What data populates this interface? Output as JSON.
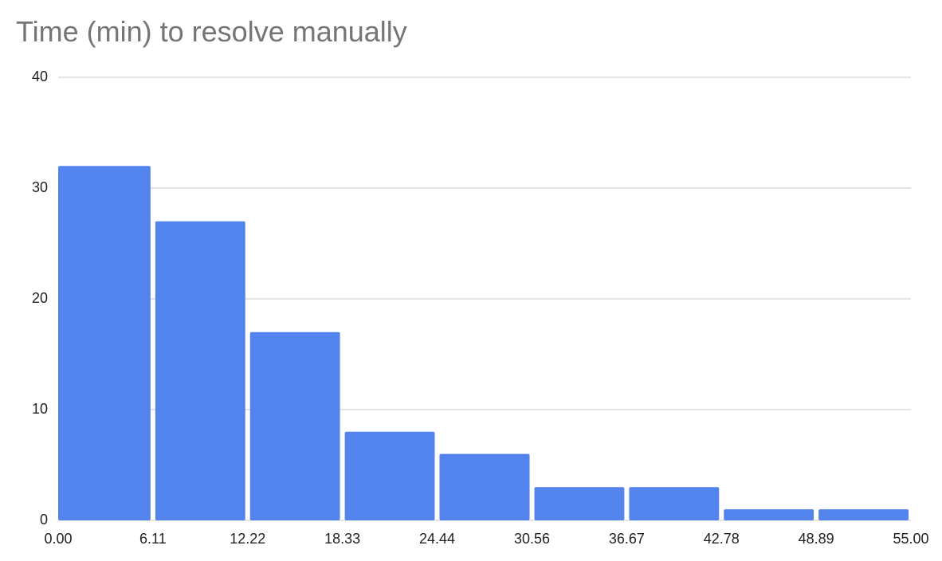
{
  "chart_data": {
    "type": "histogram",
    "title": "Time (min) to resolve manually",
    "bins": [
      0,
      6.11,
      12.22,
      18.33,
      24.44,
      30.56,
      36.67,
      42.78,
      48.89,
      55
    ],
    "counts": [
      32,
      27,
      17,
      8,
      6,
      3,
      3,
      1,
      1
    ],
    "color": "#5383ec",
    "xlim": [
      0,
      55
    ],
    "xticks": [
      {
        "value": 0,
        "label": "0.00"
      },
      6.11,
      12.22,
      18.33,
      24.44,
      30.56,
      36.67,
      42.78,
      48.89,
      {
        "value": 55,
        "label": "55.00"
      }
    ],
    "ylim": [
      0,
      40
    ],
    "yticks": [
      0,
      10,
      20,
      30,
      40
    ],
    "grid": true
  }
}
